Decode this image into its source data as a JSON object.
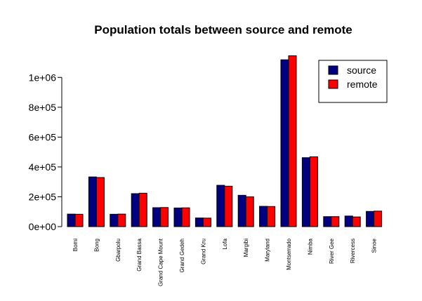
{
  "chart_data": {
    "type": "bar",
    "title": "Population totals between source and remote",
    "xlabel": "",
    "ylabel": "",
    "ylim": [
      0,
      1150000
    ],
    "yticks": [
      {
        "value": 0,
        "label": "0e+00"
      },
      {
        "value": 200000,
        "label": "2e+05"
      },
      {
        "value": 400000,
        "label": "4e+05"
      },
      {
        "value": 600000,
        "label": "6e+05"
      },
      {
        "value": 800000,
        "label": "8e+05"
      },
      {
        "value": 1000000,
        "label": "1e+06"
      }
    ],
    "grid": false,
    "legend_position": "top-right",
    "categories": [
      "Bomi",
      "Bong",
      "Gbarpolu",
      "Grand Bassa",
      "Grand Cape Mount",
      "Grand Gedeh",
      "Grand Kru",
      "Lofa",
      "Margibi",
      "Maryland",
      "Montserrado",
      "Nimba",
      "River Gee",
      "Rivercess",
      "Sinoe"
    ],
    "series": [
      {
        "name": "source",
        "color": "#000080",
        "values": [
          84000,
          333000,
          83000,
          221000,
          127000,
          125000,
          58000,
          277000,
          210000,
          136000,
          1118000,
          462000,
          67000,
          71000,
          102000
        ]
      },
      {
        "name": "remote",
        "color": "#ff0000",
        "values": [
          83000,
          329000,
          84000,
          224000,
          128000,
          126000,
          57000,
          271000,
          200000,
          135000,
          1145000,
          468000,
          67000,
          65000,
          104000
        ]
      }
    ]
  }
}
